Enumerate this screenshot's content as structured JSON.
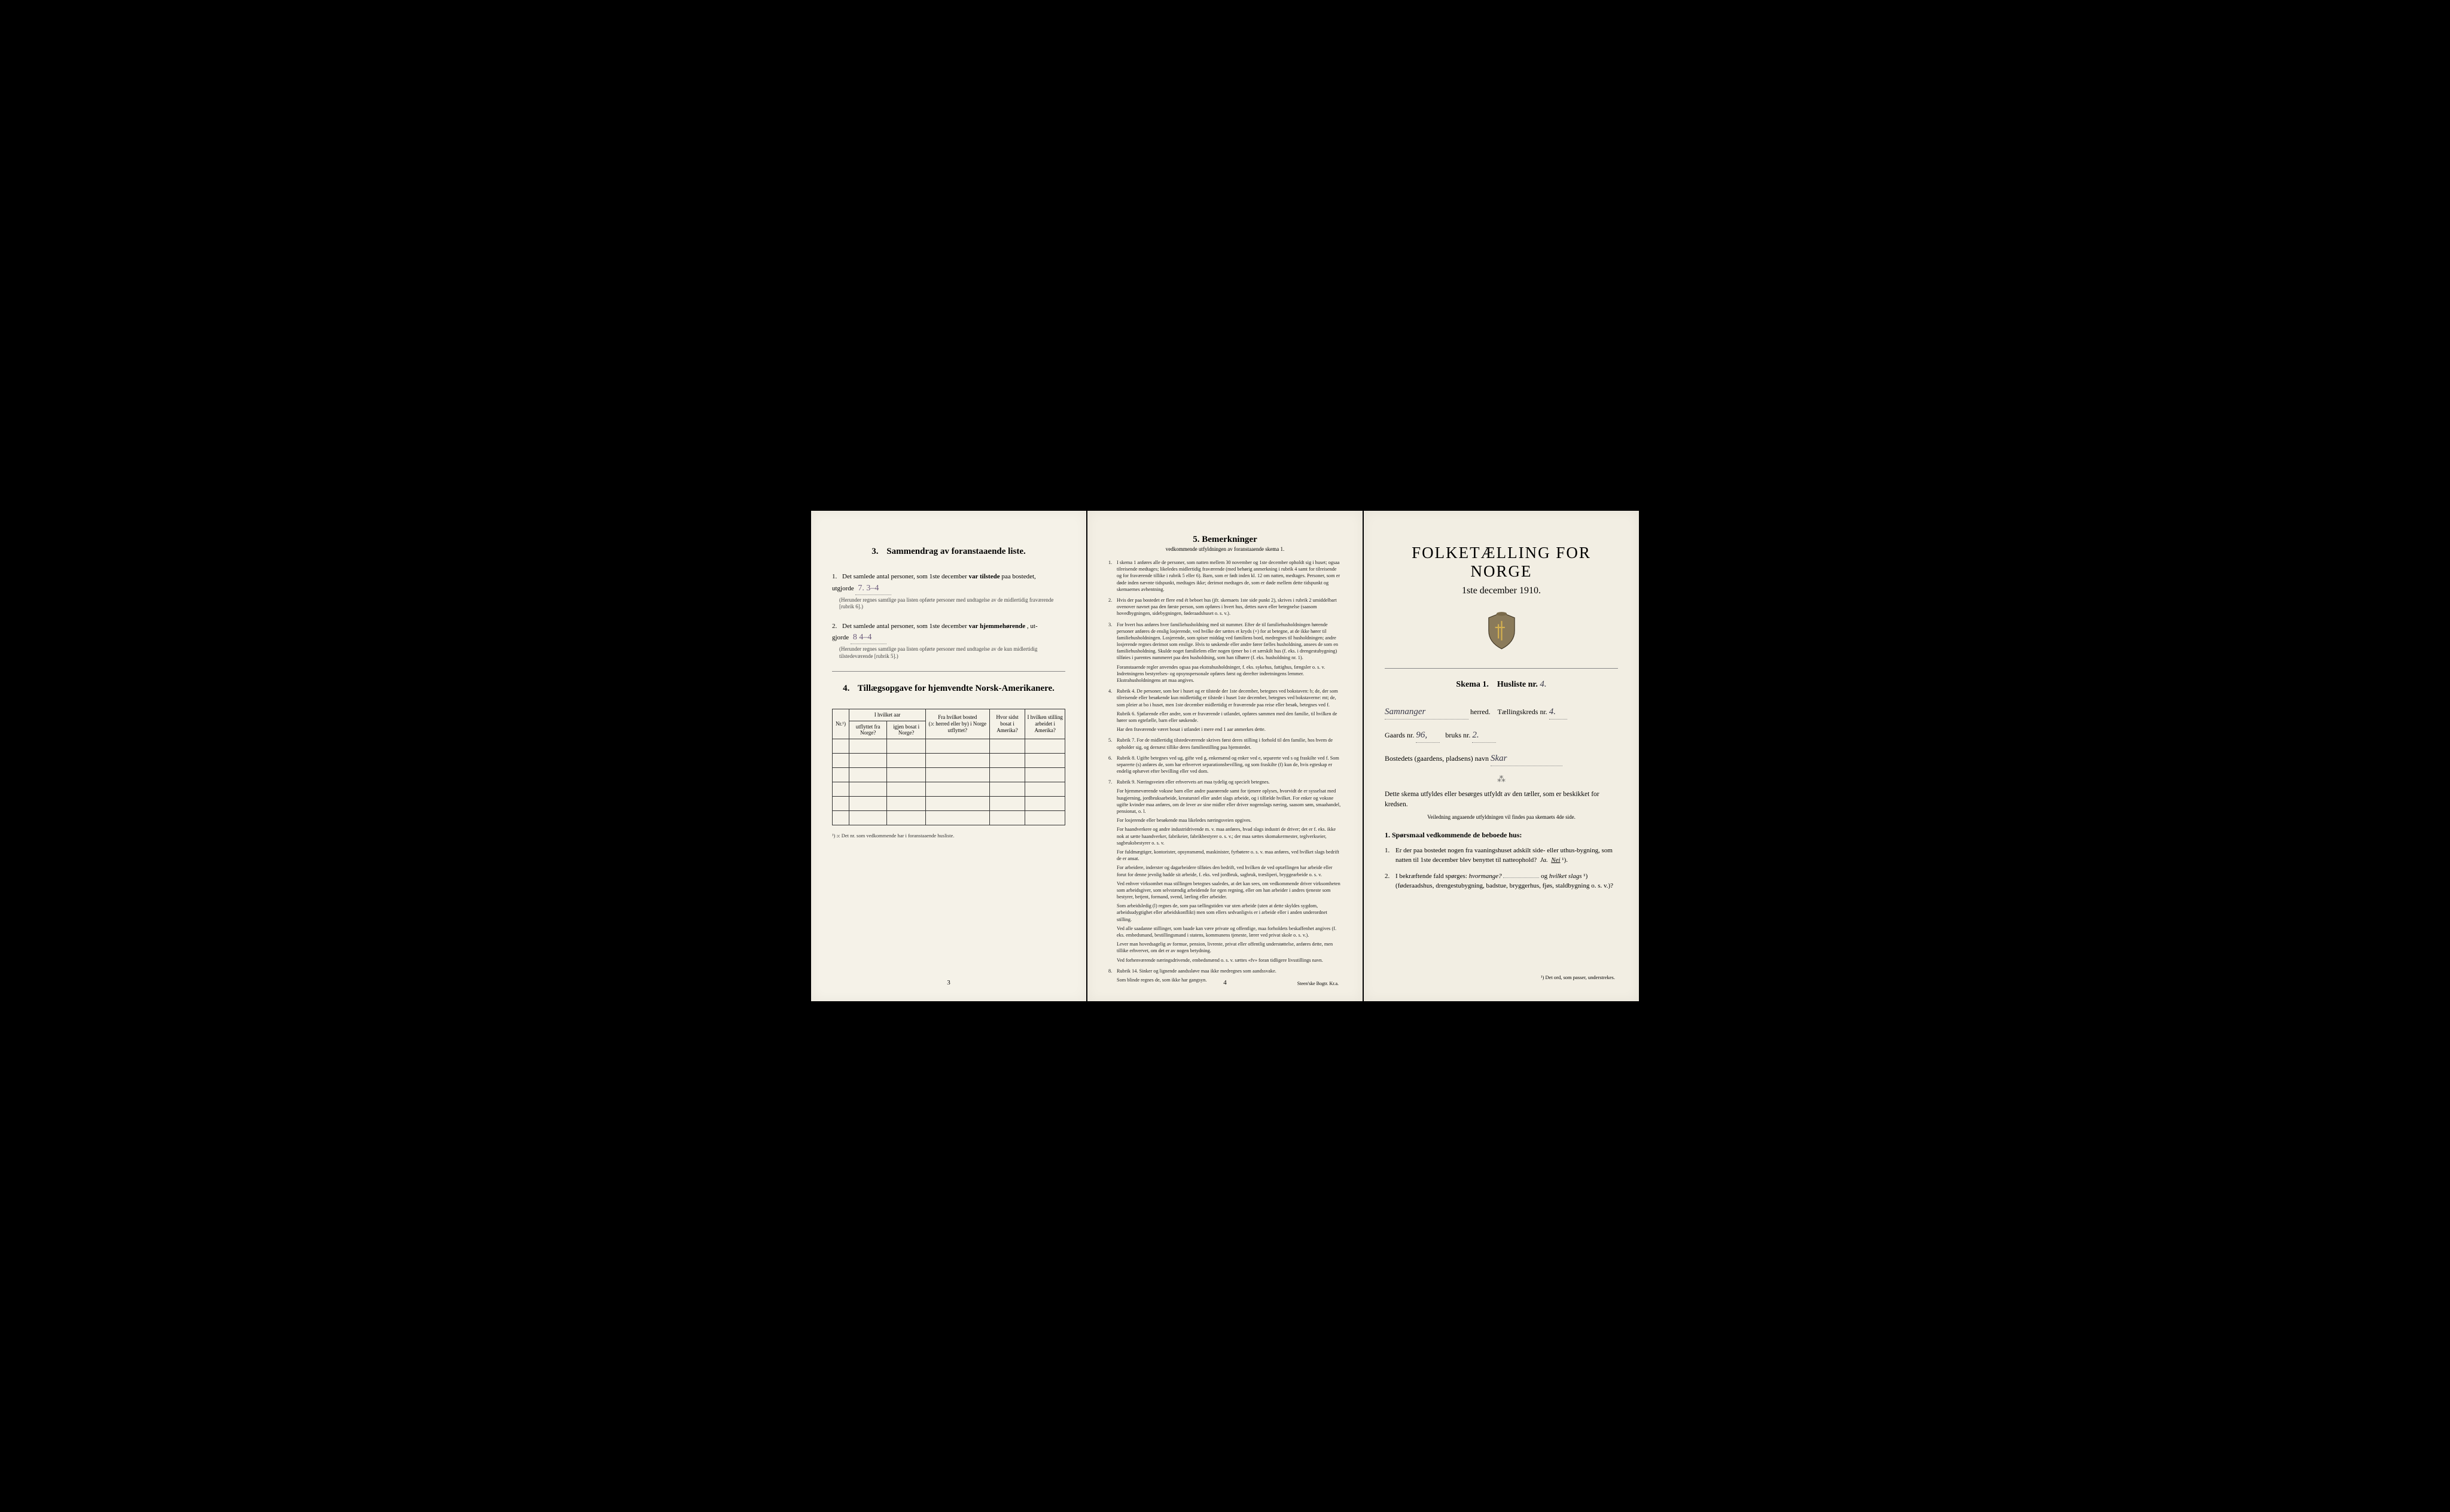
{
  "page1": {
    "section3": {
      "num": "3.",
      "title": "Sammendrag av foranstaaende liste.",
      "item1_num": "1.",
      "item1_text_a": "Det samlede antal personer, som 1ste december ",
      "item1_bold": "var tilstede",
      "item1_text_b": " paa bostedet,",
      "item1_text_c": "utgjorde",
      "item1_fill": "7.     3–4",
      "item1_note": "(Herunder regnes samtlige paa listen opførte personer med undtagelse av de midlertidig fraværende [rubrik 6].)",
      "item2_num": "2.",
      "item2_text_a": "Det samlede antal personer, som 1ste december ",
      "item2_bold": "var hjemmehørende",
      "item2_text_b": ", ut-",
      "item2_text_c": "gjorde",
      "item2_fill": "8     4–4",
      "item2_note": "(Herunder regnes samtlige paa listen opførte personer med undtagelse av de kun midlertidig tilstedeværende [rubrik 5].)"
    },
    "section4": {
      "num": "4.",
      "title": "Tillægsopgave for hjemvendte Norsk-Amerikanere.",
      "headers": {
        "nr": "Nr.¹)",
        "col1a": "I hvilket aar",
        "col1b": "utflyttet fra Norge?",
        "col1c": "igjen bosat i Norge?",
        "col2a": "Fra hvilket bosted",
        "col2b": "(ɔ: herred eller by) i Norge utflyttet?",
        "col3a": "Hvor sidst",
        "col3b": "bosat i Amerika?",
        "col4a": "I hvilken stilling",
        "col4b": "arbeidet i Amerika?"
      },
      "footnote": "¹) ɔ: Det nr. som vedkommende har i foranstaaende husliste.",
      "rows": 6
    },
    "page_num": "3"
  },
  "page2": {
    "heading_num": "5.",
    "heading": "Bemerkninger",
    "sub": "vedkommende utfyldningen av foranstaaende skema 1.",
    "items": [
      {
        "n": "1.",
        "paras": [
          "I skema 1 anføres alle de personer, som natten mellem 30 november og 1ste december opholdt sig i huset; ogsaa tilreisende medtages; likeledes midlertidig fraværende (med behørig anmerkning i rubrik 4 samt for tilreisende og for fraværende tillike i rubrik 5 eller 6). Barn, som er født inden kl. 12 om natten, medtages. Personer, som er døde inden nævnte tidspunkt, medtages ikke; derimot medtages de, som er døde mellem dette tidspunkt og skemaernes avhentning."
        ]
      },
      {
        "n": "2.",
        "paras": [
          "Hvis der paa bostedet er flere end ét beboet hus (jfr. skemaets 1ste side punkt 2), skrives i rubrik 2 umiddelbart ovenover navnet paa den første person, som opføres i hvert hus, dettes navn eller betegnelse (saasom hovedbygningen, sidebygningen, føderaadshuset o. s. v.)."
        ]
      },
      {
        "n": "3.",
        "paras": [
          "For hvert hus anføres hver familiehusholdning med sit nummer. Efter de til familiehusholdningen hørende personer anføres de enslig losjerende, ved hvilke der sættes et kryds (×) for at betegne, at de ikke hører til familiehusholdningen. Losjerende, som spiser middag ved familiens bord, medregnes til husholdningen; andre losjerende regnes derimot som enslige. Hvis to søskende eller andre fører fælles husholdning, ansees de som en familiehusholdning. Skulde noget familielem eller nogen tjener bo i et særskilt hus (f. eks. i drengestubygning) tilføies i parentes nummeret paa den husholdning, som han tilhører (f. eks. husholdning nr. 1).",
          "Foranstaaende regler anvendes ogsaa paa ekstrahusholdninger, f. eks. sykehus, fattighus, fængsler o. s. v. Indretningens bestyrelses- og opsynspersonale opføres først og derefter indretningens lemmer. Ekstrahusholdningens art maa angives."
        ]
      },
      {
        "n": "4.",
        "paras": [
          "Rubrik 4. De personer, som bor i huset og er tilstede der 1ste december, betegnes ved bokstaven: b; de, der som tilreisende eller besøkende kun midlertidig er tilstede i huset 1ste december, betegnes ved bokstaverne: mt; de, som pleier at bo i huset, men 1ste december midlertidig er fraværende paa reise eller besøk, betegnes ved f.",
          "Rubrik 6. Sjøfarende eller andre, som er fraværende i utlandet, opføres sammen med den familie, til hvilken de hører som egtefælle, barn eller søskende.",
          "Har den fraværende været bosat i utlandet i mere end 1 aar anmerkes dette."
        ]
      },
      {
        "n": "5.",
        "paras": [
          "Rubrik 7. For de midlertidig tilstedeværende skrives først deres stilling i forhold til den familie, hos hvem de opholder sig, og dernæst tillike deres familiestilling paa hjemstedet."
        ]
      },
      {
        "n": "6.",
        "paras": [
          "Rubrik 8. Ugifte betegnes ved ug, gifte ved g, enkemænd og enker ved e, separerte ved s og fraskilte ved f. Som separerte (s) anføres de, som har erhvervet separationsbevilling, og som fraskilte (f) kun de, hvis egteskap er endelig ophævet efter bevilling eller ved dom."
        ]
      },
      {
        "n": "7.",
        "paras": [
          "Rubrik 9. Næringsveien eller erhvervets art maa tydelig og specielt betegnes.",
          "For hjemmeværende voksne barn eller andre paarørende samt for tjenere oplyses, hvorvidt de er sysselsat med husgjerning, jordbruksarbeide, kreaturstel eller andet slags arbeide, og i tilfælde hvilket. For enker og voksne ugifte kvinder maa anføres, om de lever av sine midler eller driver nogenslags næring, saasom søm, smaahandel, pensionat, o. l.",
          "For losjerende eller besøkende maa likeledes næringsveien opgives.",
          "For haandverkere og andre industridrivende m. v. maa anføres, hvad slags industri de driver; det er f. eks. ikke nok at sætte haandverker, fabrikeier, fabrikbestyrer o. s. v.; der maa sættes skomakermester, teglverkseier, sagbruksbestyrer o. s. v.",
          "For fuldmægtiger, kontorister, opsynsmænd, maskinister, fyrbøtere o. s. v. maa anføres, ved hvilket slags bedrift de er ansat.",
          "For arbeidere, inderster og dagarbeidere tilføies den bedrift, ved hvilken de ved optællingen har arbeide eller forut for denne jevnlig hadde sit arbeide, f. eks. ved jordbruk, sagbruk, træsliperi, bryggearbeide o. s. v.",
          "Ved enhver virksomhet maa stillingen betegnes saaledes, at det kan sees, om vedkommende driver virksomheten som arbeidsgiver, som selvstændig arbeidende for egen regning, eller om han arbeider i andres tjeneste som bestyrer, betjent, formand, svend, lærling eller arbeider.",
          "Som arbeidsledig (l) regnes de, som paa tællingstiden var uten arbeide (uten at dette skyldes sygdom, arbeidsudygtighet eller arbeidskonflikt) men som ellers sedvanligvis er i arbeide eller i anden underordnet stilling.",
          "Ved alle saadanne stillinger, som baade kan være private og offentlige, maa forholdets beskaffenhet angives (f. eks. embedsmand, bestillingsmand i statens, kommunens tjeneste, lærer ved privat skole o. s. v.).",
          "Lever man hovedsagelig av formue, pension, livrente, privat eller offentlig understøttelse, anføres dette, men tillike erhvervet, om det er av nogen betydning.",
          "Ved forhenværende næringsdrivende, embedsmænd o. s. v. sættes «fv» foran tidligere livsstillings navn."
        ]
      },
      {
        "n": "8.",
        "paras": [
          "Rubrik 14. Sinker og lignende aandssløve maa ikke medregnes som aandssvake.",
          "Som blinde regnes de, som ikke har gangsyn."
        ]
      }
    ],
    "page_num": "4",
    "printer": "Steen'ske Bogtr. Kr.a."
  },
  "page3": {
    "title": "FOLKETÆLLING FOR NORGE",
    "subtitle": "1ste december 1910.",
    "skema_label": "Skema 1.",
    "husliste_label": "Husliste nr.",
    "husliste_val": "4.",
    "herred_val": "Samnanger",
    "herred_label": "herred.",
    "kreds_label": "Tællingskreds nr.",
    "kreds_val": "4.",
    "gaards_label": "Gaards nr.",
    "gaards_val": "96,",
    "bruks_label": "bruks nr.",
    "bruks_val": "2.",
    "bosted_label": "Bostedets (gaardens, pladsens) navn",
    "bosted_val": "Skar",
    "intro": "Dette skema utfyldes eller besørges utfyldt av den tæller, som er beskikket for kredsen.",
    "small": "Veiledning angaaende utfyldningen vil findes paa skemaets 4de side.",
    "q_heading_num": "1.",
    "q_heading": "Spørsmaal vedkommende de beboede hus:",
    "q1_num": "1.",
    "q1": "Er der paa bostedet nogen fra vaaningshuset adskilt side- eller uthus-bygning, som natten til 1ste december blev benyttet til natteophold?",
    "q1_ja": "Ja.",
    "q1_nei": "Nei",
    "q1_sup": "¹).",
    "q2_num": "2.",
    "q2a": "I bekræftende fald spørges: ",
    "q2b": "hvormange?",
    "q2c": "og",
    "q2d": "hvilket slags",
    "q2e": "¹) (føderaadshus, drengestubygning, badstue, bryggerhus, fjøs, staldbygning o. s. v.)?",
    "footnote": "¹) Det ord, som passer, understrekes."
  },
  "colors": {
    "paper": "#f4f0e6",
    "ink": "#1a1a1a",
    "handwriting": "#6a5a7a"
  }
}
